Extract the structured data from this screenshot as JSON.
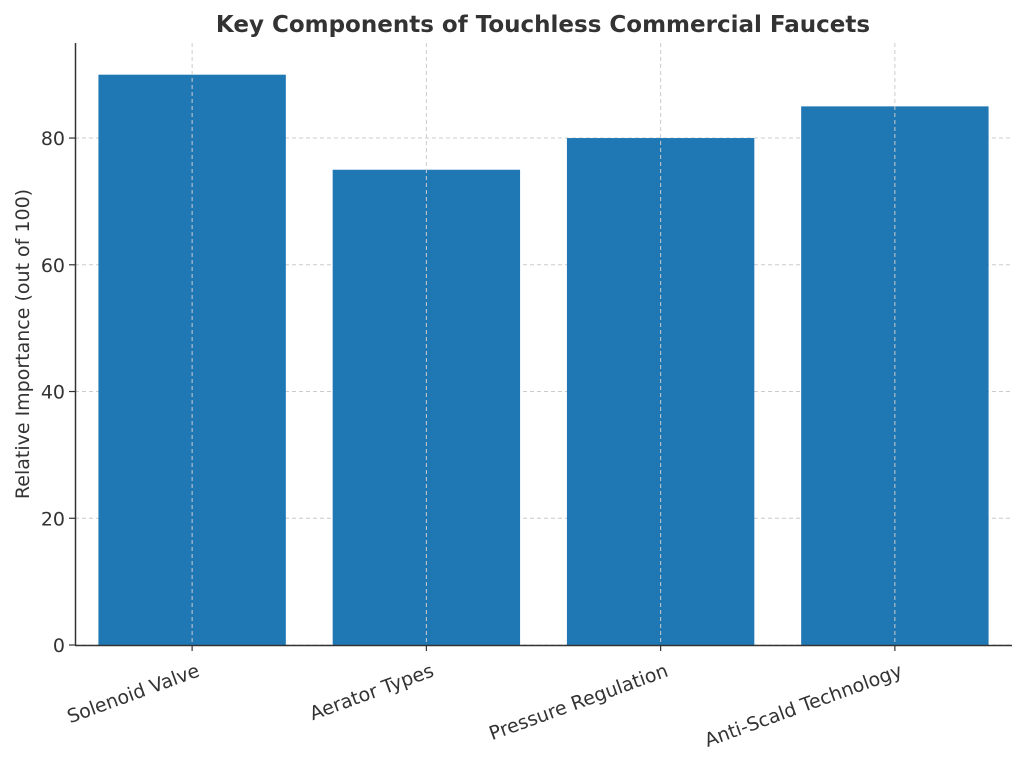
{
  "chart_data": {
    "type": "bar",
    "title": "Key Components of Touchless Commercial Faucets",
    "xlabel": "",
    "ylabel": "Relative Importance (out of 100)",
    "categories": [
      "Solenoid Valve",
      "Aerator Types",
      "Pressure Regulation",
      "Anti-Scald Technology"
    ],
    "values": [
      90,
      75,
      80,
      85
    ],
    "ylim": [
      0,
      95
    ],
    "yticks": [
      0,
      20,
      40,
      60,
      80
    ],
    "grid": true,
    "bar_color": "#1f77b4"
  }
}
